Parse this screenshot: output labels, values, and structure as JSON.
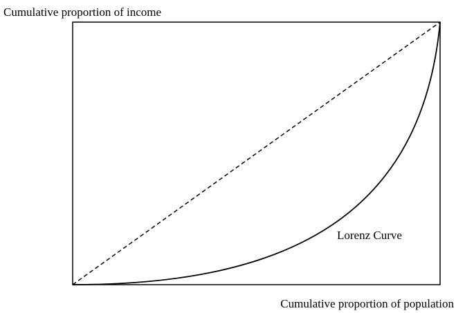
{
  "y_axis_label": "Cumulative proportion of income",
  "x_axis_label": "Cumulative proportion of population",
  "curve_label": "Lorenz Curve"
}
